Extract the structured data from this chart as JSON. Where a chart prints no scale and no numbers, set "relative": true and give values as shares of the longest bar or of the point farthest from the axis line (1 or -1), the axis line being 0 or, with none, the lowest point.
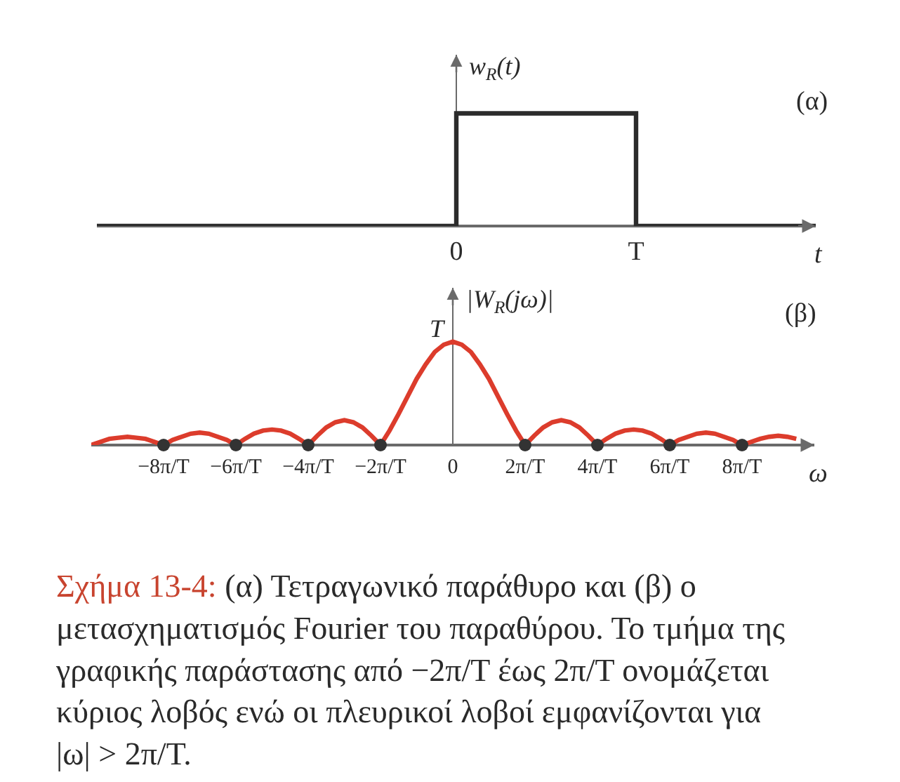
{
  "chart_data": [
    {
      "type": "step",
      "relative": true,
      "ylabel": "w$_{R}$(t)",
      "xlabel": "t",
      "categories": [
        null,
        null,
        "0",
        "T",
        null
      ],
      "annotations": [
        "(α)"
      ],
      "series": [
        {
          "color": "#2b2b2b",
          "values": [
            0,
            0,
            1,
            0,
            0
          ]
        }
      ]
    },
    {
      "type": "line",
      "relative": true,
      "ylabel": "|W$_{R}$(jω)|",
      "xlabel": "ω",
      "xlim": [
        -10,
        10
      ],
      "xticks": [
        {
          "value": -8,
          "label": "−8π/T"
        },
        {
          "value": -6,
          "label": "−6π/T"
        },
        {
          "value": -4,
          "label": "−4π/T"
        },
        {
          "value": -2,
          "label": "−2π/T"
        },
        0,
        {
          "value": 2,
          "label": "2π/T"
        },
        {
          "value": 4,
          "label": "4π/T"
        },
        {
          "value": 6,
          "label": "6π/T"
        },
        {
          "value": 8,
          "label": "8π/T"
        }
      ],
      "annotations": [
        "(β)",
        {
          "text": "T",
          "x": 0,
          "y": 1
        },
        "Σχήμα 13-4:",
        "(α) Τετραγωνικό παράθυρο και (β) ο μετασχηματισμός Fourier του παραθύρου. Το τμήμα της γραφικής παράστασης από −2π/T έως 2π/T ονομάζεται κύριος λοβός ενώ οι πλευρικοί λοβοί εμφανίζονται για |ω| > 2π/T."
      ],
      "series": [
        {
          "color": "#dc3c2c",
          "x": [
            -10,
            -9.75,
            -9.5,
            -9.25,
            -9,
            -8.75,
            -8.5,
            -8.25,
            -8,
            -7.75,
            -7.5,
            -7.25,
            -7,
            -6.75,
            -6.5,
            -6.25,
            -6,
            -5.75,
            -5.5,
            -5.25,
            -5,
            -4.75,
            -4.5,
            -4.25,
            -4,
            -3.75,
            -3.5,
            -3.25,
            -3,
            -2.75,
            -2.5,
            -2.25,
            -2,
            -1.75,
            -1.5,
            -1.25,
            -1,
            -0.75,
            -0.5,
            -0.25,
            0,
            0.25,
            0.5,
            0.75,
            1,
            1.25,
            1.5,
            1.75,
            2,
            2.25,
            2.5,
            2.75,
            3,
            3.25,
            3.5,
            3.75,
            4,
            4.25,
            4.5,
            4.75,
            5,
            5.25,
            5.5,
            5.75,
            6,
            6.25,
            6.5,
            6.75,
            7,
            7.25,
            7.5,
            7.75,
            8,
            8.25,
            8.5,
            8.75,
            9,
            9.25,
            9.5
          ],
          "values": [
            0,
            0.03,
            0.06,
            0.07,
            0.08,
            0.07,
            0.06,
            0.03,
            0,
            0.05,
            0.08,
            0.11,
            0.12,
            0.11,
            0.08,
            0.05,
            0,
            0.06,
            0.11,
            0.14,
            0.15,
            0.14,
            0.11,
            0.06,
            0,
            0.09,
            0.17,
            0.22,
            0.24,
            0.22,
            0.17,
            0.09,
            0,
            0.14,
            0.3,
            0.47,
            0.64,
            0.78,
            0.9,
            0.97,
            1,
            0.97,
            0.9,
            0.78,
            0.64,
            0.47,
            0.3,
            0.14,
            0,
            0.09,
            0.17,
            0.22,
            0.24,
            0.22,
            0.17,
            0.09,
            0,
            0.06,
            0.11,
            0.14,
            0.15,
            0.14,
            0.11,
            0.06,
            0,
            0.05,
            0.08,
            0.11,
            0.12,
            0.11,
            0.08,
            0.05,
            0,
            0.03,
            0.06,
            0.08,
            0.09,
            0.08,
            0.06
          ]
        },
        {
          "type": "scatter",
          "marker": "circle",
          "color": "#333333",
          "x": [
            -8,
            -6,
            -4,
            -2,
            2,
            4,
            6,
            8
          ],
          "values": [
            0,
            0,
            0,
            0,
            0,
            0,
            0,
            0
          ]
        }
      ]
    }
  ]
}
